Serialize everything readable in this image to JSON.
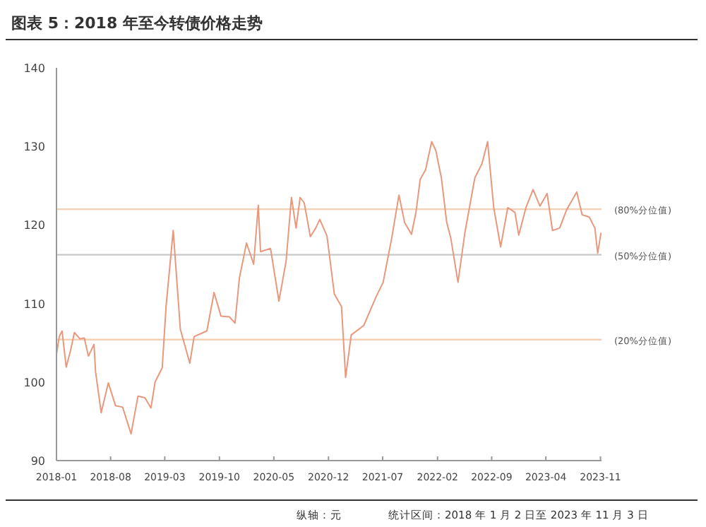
{
  "chart_data": {
    "type": "line",
    "title": "图表 5：2018 年至今转债价格走势",
    "x": [
      "2018-01-02",
      "2018-01-12",
      "2018-01-23",
      "2018-02-08",
      "2018-02-25",
      "2018-03-12",
      "2018-04-03",
      "2018-04-20",
      "2018-05-06",
      "2018-05-28",
      "2018-06-03",
      "2018-06-25",
      "2018-07-23",
      "2018-08-20",
      "2018-09-17",
      "2018-10-20",
      "2018-11-16",
      "2018-12-13",
      "2019-01-06",
      "2019-01-22",
      "2019-02-19",
      "2019-03-06",
      "2019-04-03",
      "2019-05-01",
      "2019-06-07",
      "2019-06-24",
      "2019-08-13",
      "2019-09-10",
      "2019-10-07",
      "2019-11-09",
      "2019-12-01",
      "2019-12-18",
      "2020-01-15",
      "2020-02-12",
      "2020-03-01",
      "2020-03-10",
      "2020-04-18",
      "2020-05-21",
      "2020-06-18",
      "2020-07-09",
      "2020-07-27",
      "2020-08-12",
      "2020-08-28",
      "2020-09-21",
      "2020-10-12",
      "2020-10-28",
      "2020-11-25",
      "2020-12-24",
      "2021-01-21",
      "2021-02-06",
      "2021-02-28",
      "2021-04-18",
      "2021-06-06",
      "2021-07-03",
      "2021-08-06",
      "2021-09-03",
      "2021-09-25",
      "2021-10-22",
      "2021-11-09",
      "2021-11-25",
      "2021-12-16",
      "2022-01-09",
      "2022-01-25",
      "2022-02-16",
      "2022-03-09",
      "2022-03-25",
      "2022-04-22",
      "2022-05-19",
      "2022-06-27",
      "2022-07-25",
      "2022-08-16",
      "2022-09-09",
      "2022-10-06",
      "2022-11-03",
      "2022-12-01",
      "2022-12-16",
      "2023-01-13",
      "2023-02-10",
      "2023-03-09",
      "2023-04-06",
      "2023-04-27",
      "2023-05-25",
      "2023-06-21",
      "2023-07-31",
      "2023-08-21",
      "2023-09-18",
      "2023-10-10",
      "2023-10-21",
      "2023-11-03"
    ],
    "series": [
      {
        "color": "#e8987c",
        "values": [
          103.7,
          105.8,
          106.5,
          101.9,
          104,
          106.3,
          105.5,
          105.6,
          103.3,
          104.8,
          101.3,
          96.1,
          99.9,
          97,
          96.8,
          93.4,
          98.2,
          98,
          96.7,
          100,
          101.8,
          109.6,
          119.3,
          106.7,
          102.4,
          105.8,
          106.5,
          111.4,
          108.4,
          108.3,
          107.5,
          113.2,
          117.7,
          115,
          122.5,
          116.6,
          117,
          110.3,
          115.4,
          123.5,
          119.6,
          123.5,
          122.8,
          118.5,
          119.6,
          120.7,
          118.6,
          111.2,
          109.6,
          100.6,
          106,
          107.2,
          110.9,
          112.7,
          118.4,
          123.8,
          120.3,
          118.8,
          121.7,
          125.8,
          127,
          130.6,
          129.5,
          126,
          120.3,
          118.3,
          112.7,
          119,
          126,
          127.8,
          130.6,
          122.2,
          117.2,
          122.2,
          121.6,
          118.7,
          122.2,
          124.5,
          122.4,
          124,
          119.3,
          119.6,
          121.9,
          124.2,
          121.3,
          121,
          119.6,
          116.4,
          119
        ]
      }
    ],
    "xlim": [
      "2018-01-01",
      "2023-11-05"
    ],
    "xticks": [
      "2018-01",
      "2018-08",
      "2019-03",
      "2019-10",
      "2020-05",
      "2020-12",
      "2021-07",
      "2022-02",
      "2022-09",
      "2023-04",
      "2023-11"
    ],
    "ylim": [
      90,
      140
    ],
    "yticks": [
      90,
      100,
      110,
      120,
      130,
      140
    ],
    "grid": false,
    "ref_lines": [
      {
        "axis": "y",
        "value": 122,
        "label": "(80%分位值)",
        "color": "#f6cfb4"
      },
      {
        "axis": "y",
        "value": 116.2,
        "label": "(50%分位值)",
        "color": "#c9c9c9"
      },
      {
        "axis": "y",
        "value": 105.4,
        "label": "(20%分位值)",
        "color": "#f6cfb4"
      }
    ],
    "annotations": [
      "纵轴：元",
      "统计区间：2018 年 1 月 2 日至 2023 年 11 月 3 日"
    ]
  }
}
